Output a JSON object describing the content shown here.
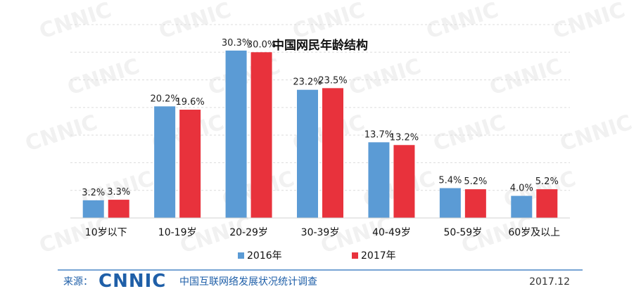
{
  "chart_data": {
    "type": "bar",
    "title": "中国网民年龄结构",
    "categories": [
      "10岁以下",
      "10-19岁",
      "20-29岁",
      "30-39岁",
      "40-49岁",
      "50-59岁",
      "60岁及以上"
    ],
    "series": [
      {
        "name": "2016年",
        "values": [
          3.2,
          20.2,
          30.3,
          23.2,
          13.7,
          5.4,
          4.0
        ],
        "labels": [
          "3.2%",
          "20.2%",
          "30.3%",
          "23.2%",
          "13.7%",
          "5.4%",
          "4.0%"
        ],
        "color": "#5b9bd5"
      },
      {
        "name": "2017年",
        "values": [
          3.3,
          19.6,
          30.0,
          23.5,
          13.2,
          5.2,
          5.2
        ],
        "labels": [
          "3.3%",
          "19.6%",
          "30.0%",
          "23.5%",
          "13.2%",
          "5.2%",
          "5.2%"
        ],
        "color": "#e8323c"
      }
    ],
    "ylim": [
      0,
      35
    ],
    "grid": true,
    "legend": "bottom"
  },
  "footer": {
    "source_label": "来源：",
    "logo_text": "CNNIC",
    "survey": "中国互联网络发展状况统计调查",
    "date": "2017.12"
  },
  "watermark": "CNNIC",
  "colors": {
    "accent_blue": "#1f5fa8",
    "footer_line": "#4a86c5"
  }
}
